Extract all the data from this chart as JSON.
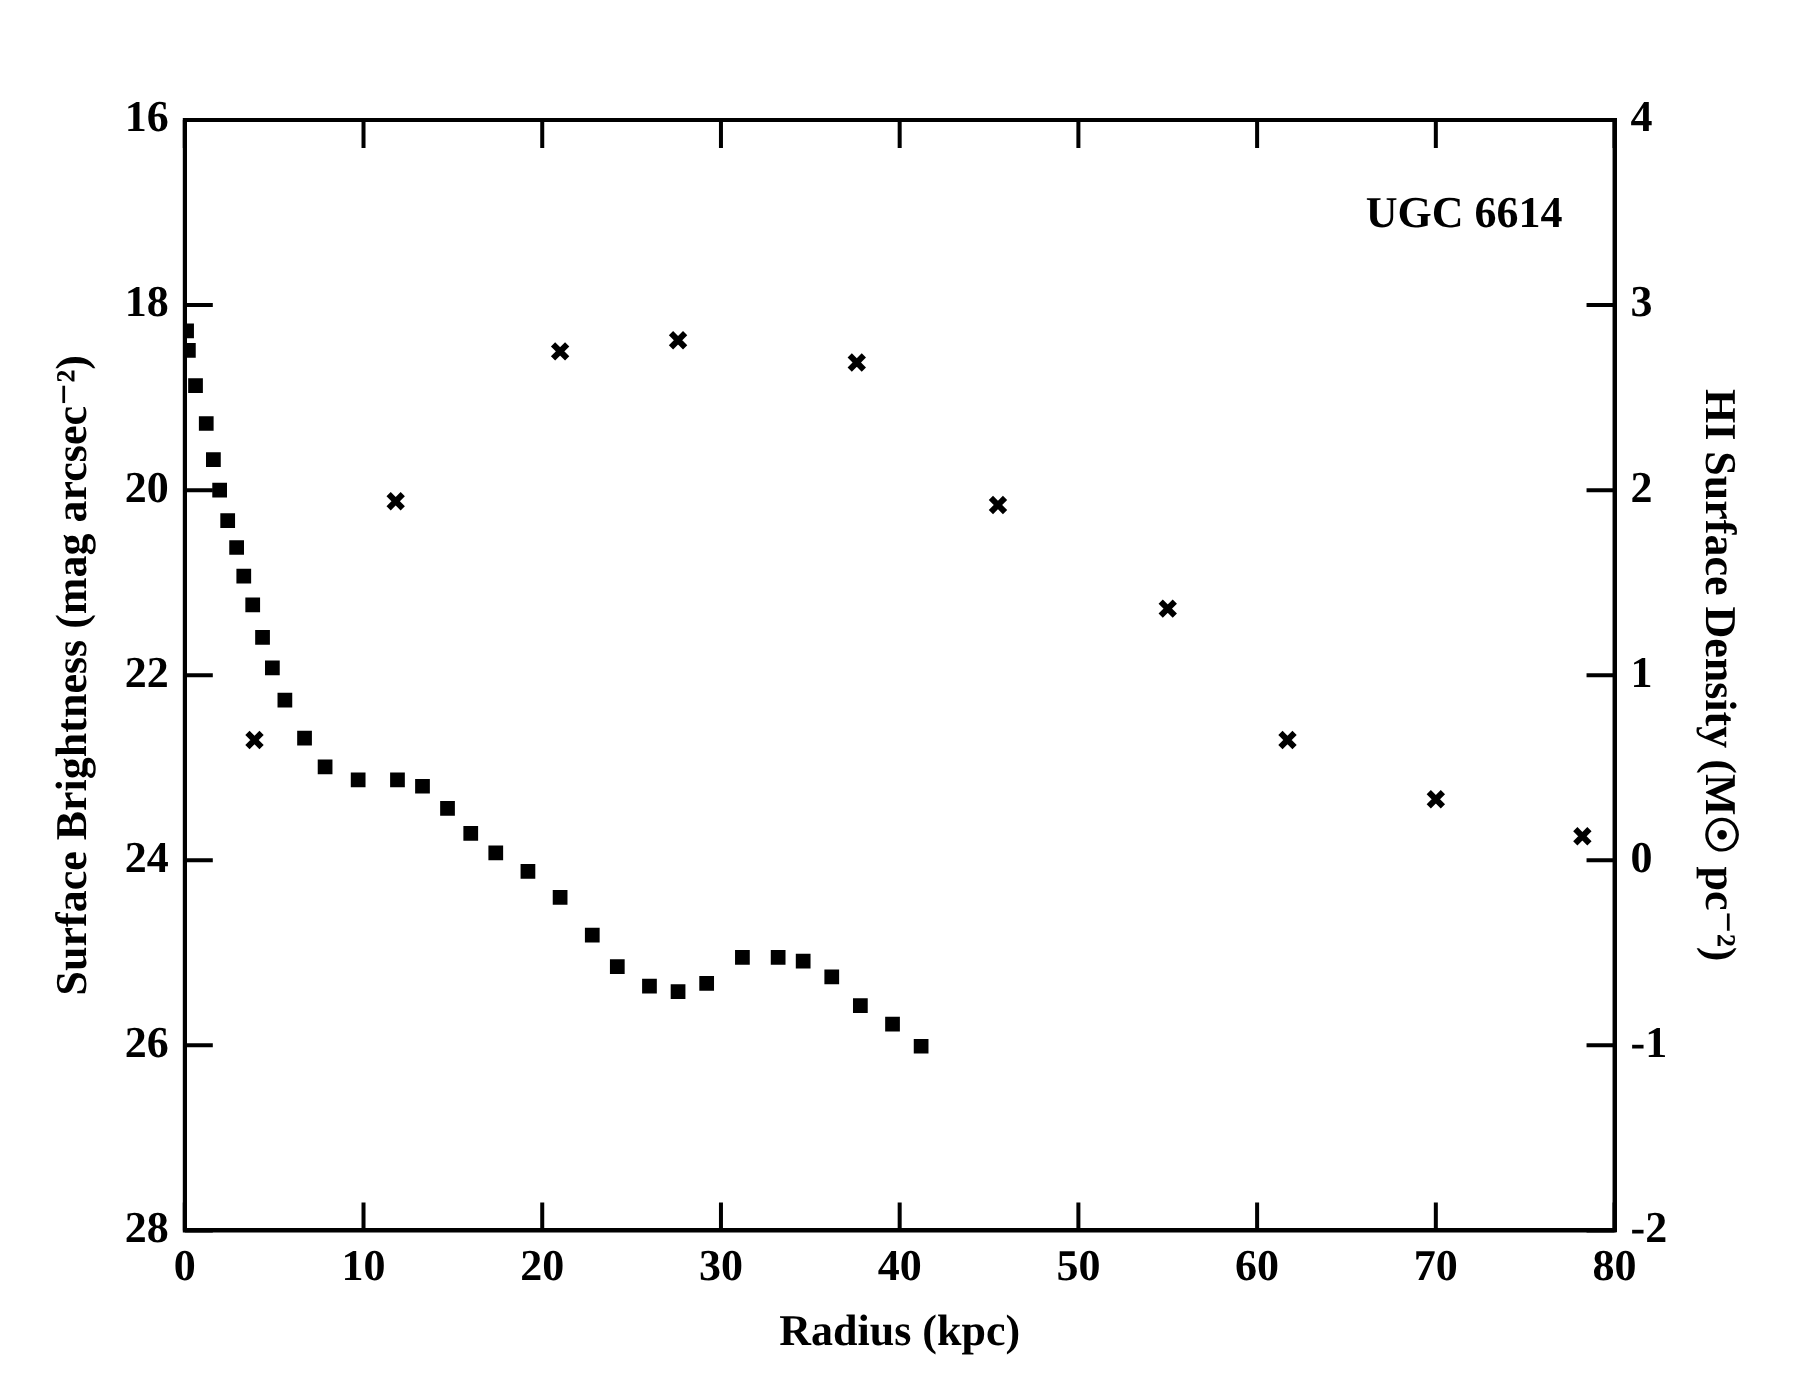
{
  "chart_data": {
    "type": "scatter",
    "xlabel": "Radius (kpc)",
    "ylabel": "Surface Brightness (mag arcsec⁻²)",
    "y2label": "HI Surface Density (M☉ pc⁻²)",
    "annotations": [
      "UGC 6614"
    ],
    "xlim": [
      0,
      80
    ],
    "xticks": [
      0,
      10,
      20,
      30,
      40,
      50,
      60,
      70,
      80
    ],
    "ylim": [
      28,
      16
    ],
    "yticks": [
      16,
      18,
      20,
      22,
      24,
      26,
      28
    ],
    "y2lim": [
      -2,
      4
    ],
    "y2ticks": [
      -2,
      -1,
      0,
      1,
      2,
      3,
      4
    ],
    "grid": false,
    "legend": false,
    "series": [
      {
        "type": "scatter",
        "color": "#000000",
        "marker": "square",
        "x": [
          0.1,
          0.2,
          0.6,
          1.2,
          1.6,
          1.95,
          2.4,
          2.9,
          3.3,
          3.8,
          4.35,
          4.9,
          5.6,
          6.7,
          7.85,
          9.7,
          11.9,
          13.3,
          14.7,
          16.0,
          17.4,
          19.2,
          21.0,
          22.8,
          24.2,
          26.0,
          27.6,
          29.2,
          31.2,
          33.2,
          34.6,
          36.2,
          37.8,
          39.6,
          41.2
        ],
        "values": [
          18.28,
          18.49,
          18.87,
          19.28,
          19.67,
          20.0,
          20.33,
          20.62,
          20.93,
          21.24,
          21.59,
          21.92,
          22.27,
          22.68,
          22.99,
          23.13,
          23.13,
          23.2,
          23.44,
          23.71,
          23.92,
          24.12,
          24.4,
          24.81,
          25.15,
          25.36,
          25.42,
          25.33,
          25.05,
          25.05,
          25.09,
          25.26,
          25.57,
          25.77,
          26.01
        ]
      },
      {
        "type": "scatter",
        "color": "#000000",
        "marker": "cross",
        "axis": "y2",
        "x": [
          3.9,
          11.8,
          21.0,
          27.6,
          37.6,
          45.5,
          55.0,
          61.7,
          70.0,
          78.2
        ],
        "values": [
          0.65,
          1.94,
          2.75,
          2.81,
          2.69,
          1.92,
          1.36,
          0.65,
          0.33,
          0.13
        ]
      }
    ]
  }
}
